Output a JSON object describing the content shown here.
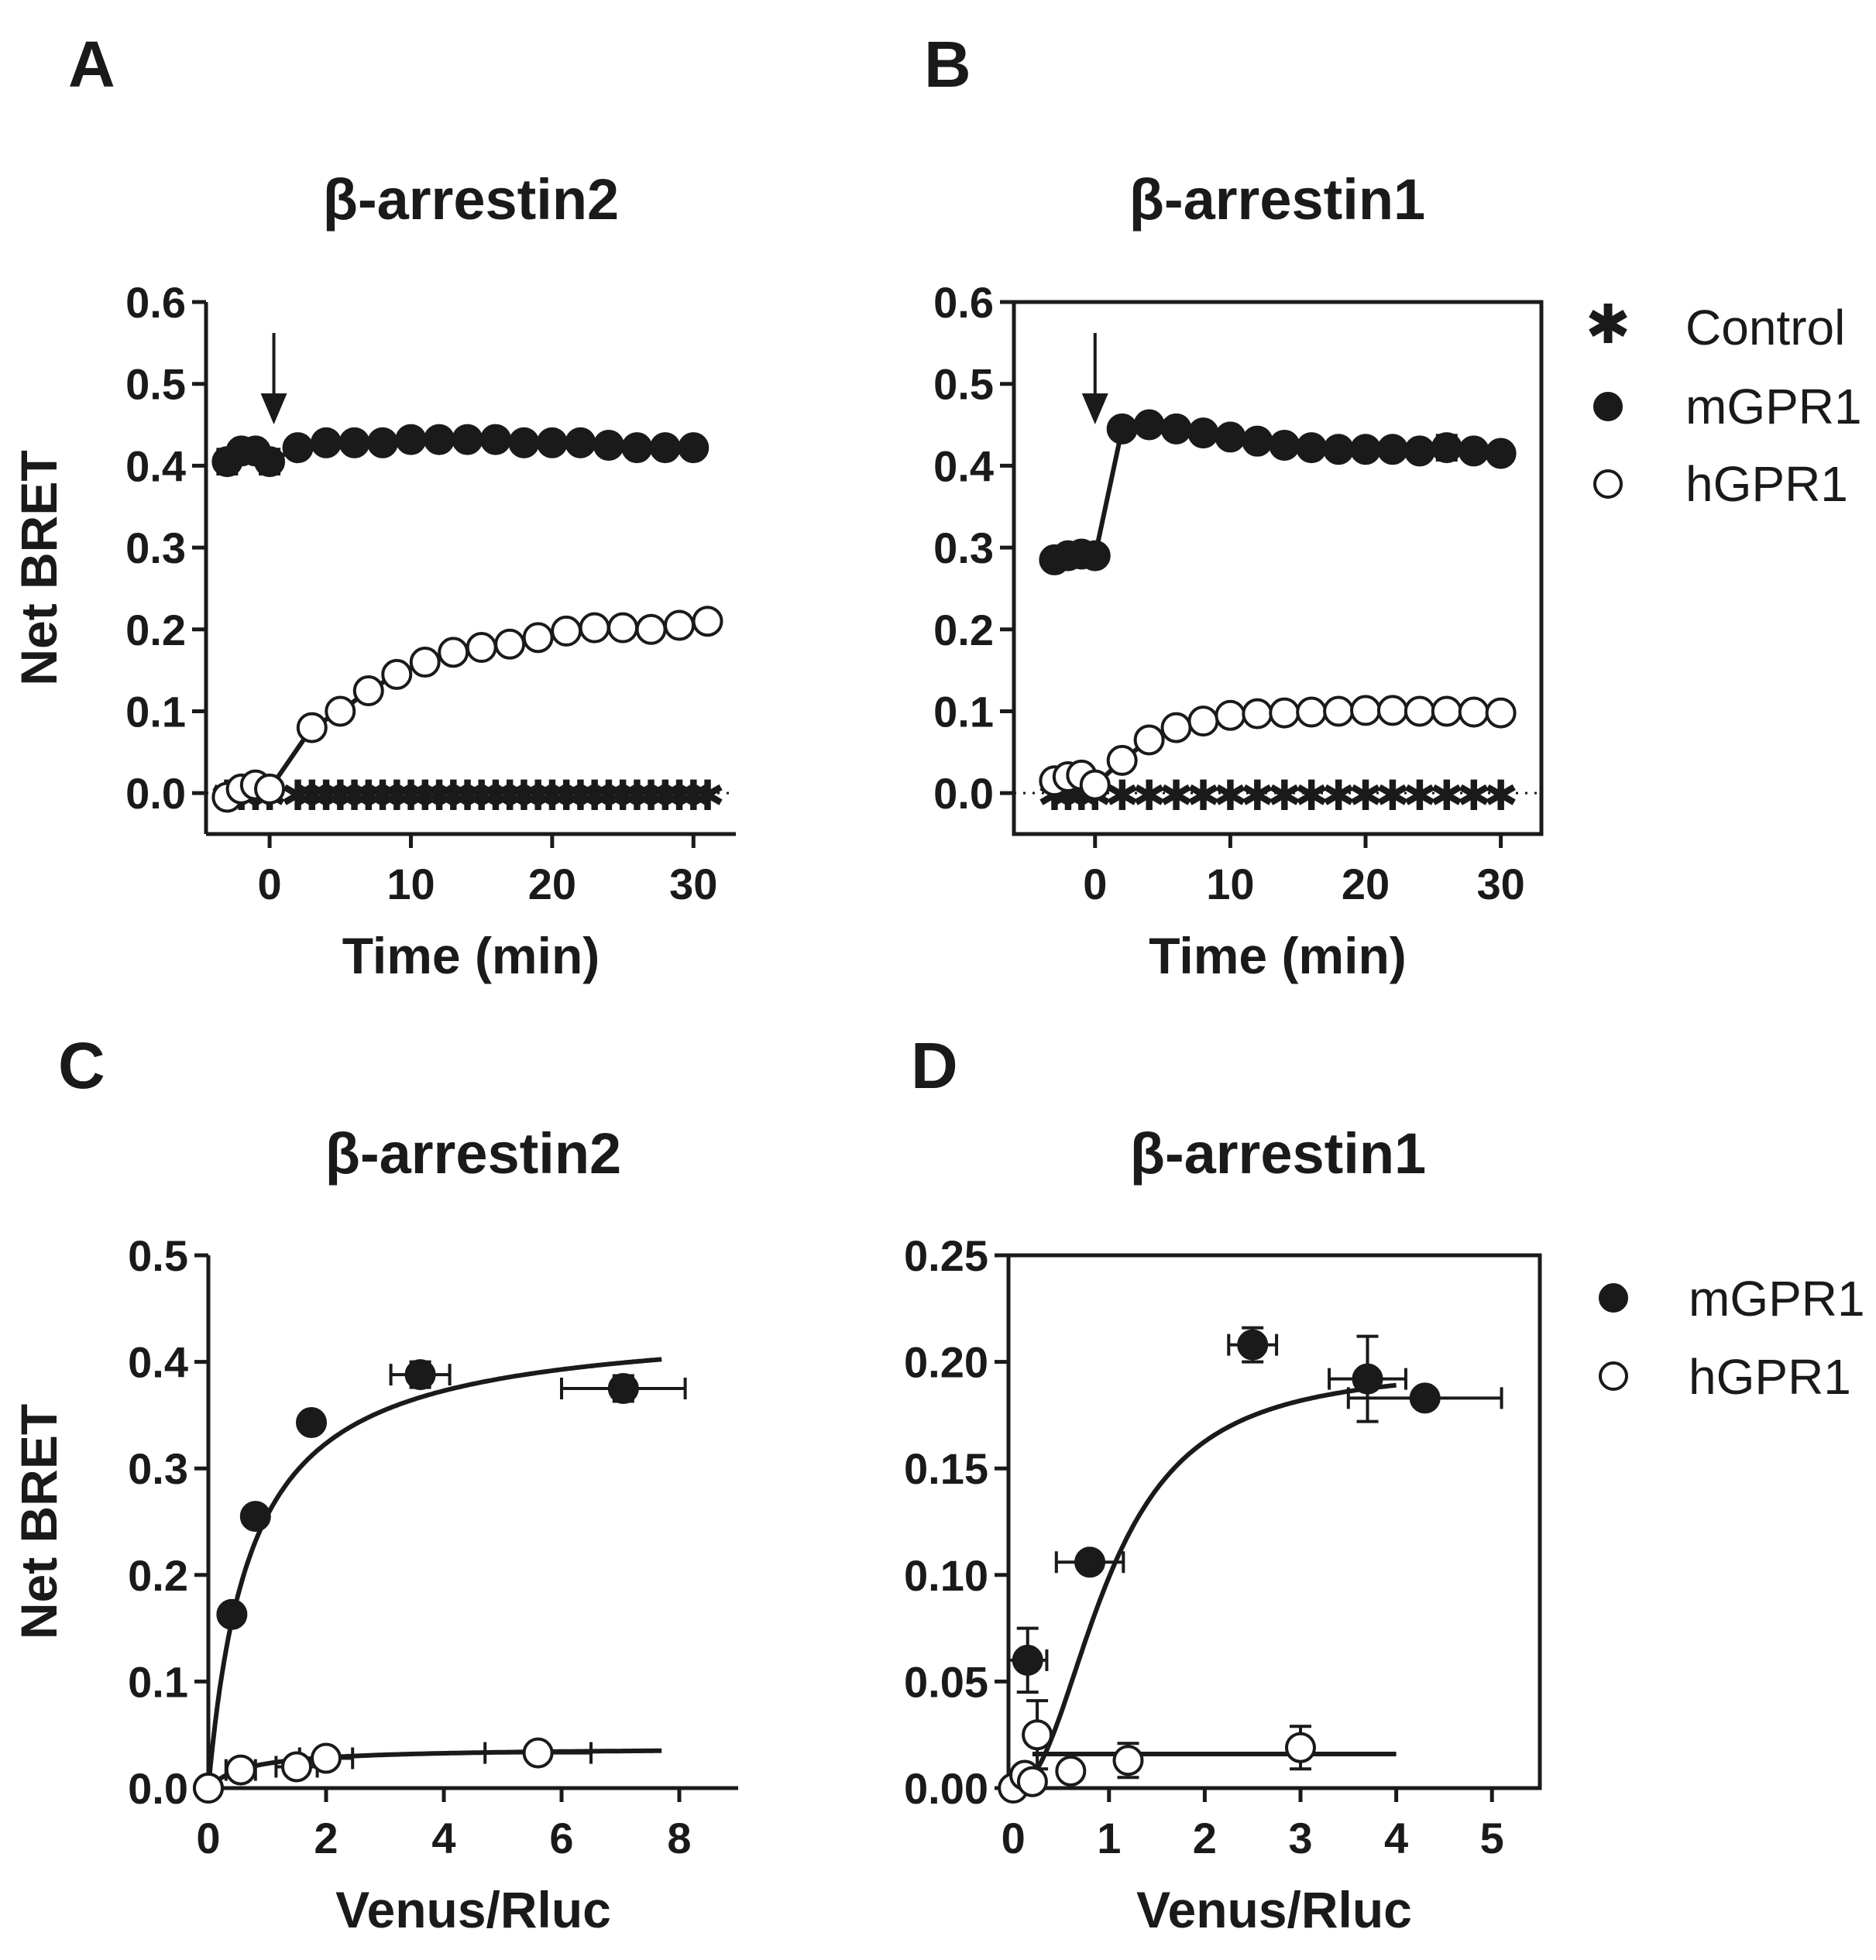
{
  "colors": {
    "ink": "#1a1a1a",
    "background": "#ffffff"
  },
  "legend_top": {
    "items": [
      {
        "label": "Control",
        "marker": "star-icon"
      },
      {
        "label": "mGPR1",
        "marker": "filled-circle-icon"
      },
      {
        "label": "hGPR1",
        "marker": "open-circle-icon"
      }
    ]
  },
  "legend_bottom": {
    "items": [
      {
        "label": "mGPR1",
        "marker": "filled-circle-icon"
      },
      {
        "label": "hGPR1",
        "marker": "open-circle-icon"
      }
    ]
  },
  "chart_data": [
    {
      "id": "A",
      "letter": "A",
      "type": "scatter",
      "title": "β-arrestin2",
      "xlabel": "Time (min)",
      "ylabel": "Net BRET",
      "xlim": [
        -4.5,
        33
      ],
      "ylim": [
        -0.05,
        0.6
      ],
      "xticks": [
        0,
        10,
        20,
        30
      ],
      "xtick_labels": [
        "0",
        "10",
        "20",
        "30"
      ],
      "yticks": [
        0.0,
        0.1,
        0.2,
        0.3,
        0.4,
        0.5,
        0.6
      ],
      "ytick_labels": [
        "0.0",
        "0.1",
        "0.2",
        "0.3",
        "0.4",
        "0.5",
        "0.6"
      ],
      "frame": "axes",
      "zero_line": true,
      "arrow_at": 0.3,
      "series": [
        {
          "name": "Control",
          "marker": "star",
          "x": [
            -3,
            -2,
            -1,
            0,
            2,
            3,
            4,
            5,
            6,
            7,
            8,
            9,
            10,
            11,
            12,
            13,
            14,
            15,
            16,
            17,
            18,
            19,
            20,
            21,
            22,
            23,
            24,
            25,
            26,
            27,
            28,
            29,
            30,
            31
          ],
          "y": [
            0,
            0,
            0,
            0,
            0,
            0,
            0,
            0,
            0,
            0,
            0,
            0,
            0,
            0,
            0,
            0,
            0,
            0,
            0,
            0,
            0,
            0,
            0,
            0,
            0,
            0,
            0,
            0,
            0,
            0,
            0,
            0,
            0,
            0
          ]
        },
        {
          "name": "mGPR1",
          "marker": "filled",
          "connect": true,
          "x": [
            -3,
            -2,
            -1,
            0,
            2,
            4,
            6,
            8,
            10,
            12,
            14,
            16,
            18,
            20,
            22,
            24,
            26,
            28,
            30
          ],
          "y": [
            0.405,
            0.418,
            0.418,
            0.405,
            0.422,
            0.428,
            0.428,
            0.428,
            0.432,
            0.432,
            0.432,
            0.432,
            0.428,
            0.428,
            0.428,
            0.425,
            0.422,
            0.422,
            0.422
          ],
          "yerr": [
            0.015,
            0,
            0,
            0.015,
            0,
            0,
            0,
            0,
            0,
            0,
            0,
            0,
            0,
            0,
            0,
            0,
            0,
            0,
            0
          ]
        },
        {
          "name": "hGPR1",
          "marker": "open",
          "connect": true,
          "x": [
            -3,
            -2,
            -1,
            0,
            3,
            5,
            7,
            9,
            11,
            13,
            15,
            17,
            19,
            21,
            23,
            25,
            27,
            29,
            31
          ],
          "y": [
            -0.005,
            0.005,
            0.01,
            0.005,
            0.08,
            0.1,
            0.125,
            0.145,
            0.16,
            0.172,
            0.178,
            0.182,
            0.19,
            0.198,
            0.202,
            0.202,
            0.2,
            0.205,
            0.21
          ]
        }
      ]
    },
    {
      "id": "B",
      "letter": "B",
      "type": "scatter",
      "title": "β-arrestin1",
      "xlabel": "Time (min)",
      "ylabel": "",
      "xlim": [
        -6,
        33
      ],
      "ylim": [
        -0.05,
        0.6
      ],
      "xticks": [
        0,
        10,
        20,
        30
      ],
      "xtick_labels": [
        "0",
        "10",
        "20",
        "30"
      ],
      "yticks": [
        0.0,
        0.1,
        0.2,
        0.3,
        0.4,
        0.5,
        0.6
      ],
      "ytick_labels": [
        "0.0",
        "0.1",
        "0.2",
        "0.3",
        "0.4",
        "0.5",
        "0.6"
      ],
      "frame": "box",
      "zero_line": true,
      "arrow_at": 0,
      "series": [
        {
          "name": "Control",
          "marker": "star",
          "x": [
            -3,
            -2,
            -1,
            0,
            2,
            4,
            6,
            8,
            10,
            12,
            14,
            16,
            18,
            20,
            22,
            24,
            26,
            28,
            30
          ],
          "y": [
            0,
            0,
            0,
            0,
            0,
            0,
            0,
            0,
            0,
            0,
            0,
            0,
            0,
            0,
            0,
            0,
            0,
            0,
            0
          ]
        },
        {
          "name": "mGPR1",
          "marker": "filled",
          "connect": true,
          "x": [
            -3,
            -2,
            -1,
            0,
            2,
            4,
            6,
            8,
            10,
            12,
            14,
            16,
            18,
            20,
            22,
            24,
            26,
            28,
            30
          ],
          "y": [
            0.285,
            0.29,
            0.292,
            0.29,
            0.445,
            0.45,
            0.445,
            0.44,
            0.435,
            0.43,
            0.425,
            0.422,
            0.42,
            0.42,
            0.42,
            0.418,
            0.422,
            0.418,
            0.415
          ],
          "yerr": [
            0,
            0,
            0,
            0,
            0,
            0,
            0,
            0,
            0,
            0,
            0,
            0,
            0,
            0,
            0,
            0,
            0.015,
            0,
            0
          ]
        },
        {
          "name": "hGPR1",
          "marker": "open",
          "connect": true,
          "x": [
            -3,
            -2,
            -1,
            0,
            2,
            4,
            6,
            8,
            10,
            12,
            14,
            16,
            18,
            20,
            22,
            24,
            26,
            28,
            30
          ],
          "y": [
            0.015,
            0.02,
            0.022,
            0.01,
            0.04,
            0.065,
            0.08,
            0.088,
            0.095,
            0.097,
            0.098,
            0.099,
            0.1,
            0.101,
            0.101,
            0.1,
            0.1,
            0.099,
            0.098
          ]
        }
      ]
    },
    {
      "id": "C",
      "letter": "C",
      "type": "scatter",
      "title": "β-arrestin2",
      "xlabel": "Venus/Rluc",
      "ylabel": "Net BRET",
      "xlim": [
        0,
        9
      ],
      "ylim": [
        0,
        0.5
      ],
      "xticks": [
        0,
        2,
        4,
        6,
        8
      ],
      "xtick_labels": [
        "0",
        "2",
        "4",
        "6",
        "8"
      ],
      "yticks": [
        0.0,
        0.1,
        0.2,
        0.3,
        0.4,
        0.5
      ],
      "ytick_labels": [
        "0.0",
        "0.1",
        "0.2",
        "0.3",
        "0.4",
        "0.5"
      ],
      "frame": "axes",
      "zero_line": false,
      "series": [
        {
          "name": "mGPR1",
          "marker": "filled",
          "connect": false,
          "x": [
            0,
            0.4,
            0.8,
            1.75,
            3.6,
            7.05
          ],
          "y": [
            0,
            0.163,
            0.255,
            0.343,
            0.388,
            0.375
          ],
          "xerr": [
            0,
            0,
            0,
            0.12,
            0.5,
            1.05
          ],
          "yerr": [
            0,
            0,
            0,
            0,
            0.012,
            0.012
          ],
          "fit": {
            "bmax": 0.44,
            "kd": 0.72,
            "xmax": 7.7
          }
        },
        {
          "name": "hGPR1",
          "marker": "open",
          "connect": false,
          "x": [
            0,
            0.55,
            1.5,
            2,
            5.6
          ],
          "y": [
            0,
            0.017,
            0.02,
            0.028,
            0.033
          ],
          "xerr": [
            0,
            0.25,
            0.35,
            0.45,
            0.9
          ],
          "yerr": [
            0,
            0,
            0,
            0,
            0
          ],
          "fit": {
            "bmax": 0.038,
            "kd": 0.65,
            "xmax": 7.7
          }
        }
      ]
    },
    {
      "id": "D",
      "letter": "D",
      "type": "scatter",
      "title": "β-arrestin1",
      "xlabel": "Venus/Rluc",
      "ylabel": "",
      "xlim": [
        -0.05,
        5.5
      ],
      "ylim": [
        0,
        0.25
      ],
      "xticks": [
        0,
        1,
        2,
        3,
        4,
        5
      ],
      "xtick_labels": [
        "0",
        "1",
        "2",
        "3",
        "4",
        "5"
      ],
      "yticks": [
        0.0,
        0.05,
        0.1,
        0.15,
        0.2,
        0.25
      ],
      "ytick_labels": [
        "0.00",
        "0.05",
        "0.10",
        "0.15",
        "0.20",
        "0.25"
      ],
      "frame": "box",
      "zero_line": false,
      "series": [
        {
          "name": "mGPR1",
          "marker": "filled",
          "connect": false,
          "x": [
            0.15,
            0.8,
            2.5,
            3.7,
            4.3
          ],
          "y": [
            0.06,
            0.106,
            0.208,
            0.192,
            0.183
          ],
          "xerr": [
            0.2,
            0.35,
            0.25,
            0.4,
            0.8
          ],
          "yerr": [
            0.015,
            0.004,
            0.008,
            0.02,
            0
          ],
          "fit": {
            "type": "sigmoid",
            "bmax": 0.198,
            "ec50": 1.0,
            "hill": 2.2,
            "xmax": 4.0
          }
        },
        {
          "name": "hGPR1",
          "marker": "open",
          "connect": false,
          "x": [
            0,
            0.12,
            0.2,
            0.25,
            0.6,
            1.2,
            3.0
          ],
          "y": [
            0,
            0.006,
            0.003,
            0.025,
            0.008,
            0.013,
            0.019
          ],
          "xerr": [
            0,
            0,
            0,
            0,
            0,
            0,
            0
          ],
          "yerr": [
            0,
            0,
            0,
            0.016,
            0,
            0.008,
            0.01
          ],
          "fit": {
            "type": "flat",
            "value": 0.016,
            "xmin": 0.2,
            "xmax": 4.0
          }
        }
      ]
    }
  ]
}
